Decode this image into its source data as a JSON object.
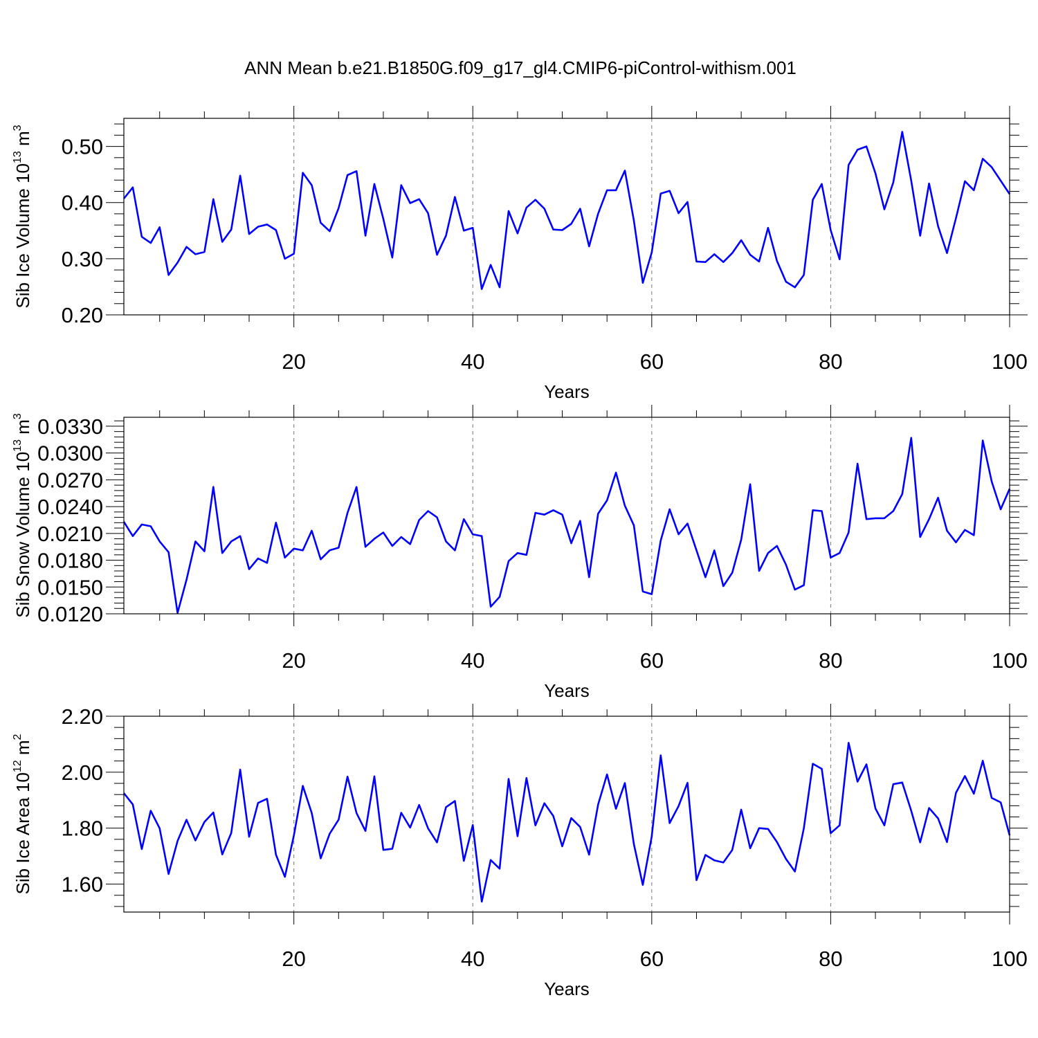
{
  "title": "ANN Mean b.e21.B1850G.f09_g17_gl4.CMIP6-piControl-withism.001",
  "chart_data": [
    {
      "type": "line",
      "ylabel_text": "Sib Ice Volume 10",
      "ylabel_exp": "13",
      "ylabel_unit": " m",
      "ylabel_unit_exp": "3",
      "xlabel": "Years",
      "xlim": [
        1,
        100
      ],
      "ylim": [
        0.2,
        0.55
      ],
      "yticks": [
        0.2,
        0.3,
        0.4,
        0.5
      ],
      "ytick_labels": [
        "0.20",
        "0.30",
        "0.40",
        "0.50"
      ],
      "xticks": [
        20,
        40,
        60,
        80,
        100
      ],
      "xtick_labels": [
        "20",
        "40",
        "60",
        "80",
        "100"
      ],
      "grid": "dashed vertical at major x ticks",
      "line_color": "#0000ff",
      "x_start": 1,
      "values": [
        0.407,
        0.427,
        0.339,
        0.328,
        0.356,
        0.271,
        0.293,
        0.321,
        0.308,
        0.312,
        0.406,
        0.33,
        0.352,
        0.448,
        0.344,
        0.357,
        0.361,
        0.351,
        0.3,
        0.309,
        0.453,
        0.431,
        0.364,
        0.349,
        0.39,
        0.449,
        0.456,
        0.341,
        0.433,
        0.371,
        0.302,
        0.431,
        0.399,
        0.406,
        0.381,
        0.307,
        0.341,
        0.41,
        0.35,
        0.355,
        0.246,
        0.289,
        0.249,
        0.385,
        0.345,
        0.391,
        0.405,
        0.389,
        0.352,
        0.351,
        0.362,
        0.389,
        0.322,
        0.38,
        0.422,
        0.422,
        0.457,
        0.368,
        0.257,
        0.311,
        0.416,
        0.421,
        0.381,
        0.401,
        0.295,
        0.294,
        0.308,
        0.294,
        0.31,
        0.333,
        0.307,
        0.295,
        0.355,
        0.296,
        0.259,
        0.249,
        0.271,
        0.405,
        0.433,
        0.351,
        0.299,
        0.467,
        0.494,
        0.5,
        0.452,
        0.388,
        0.436,
        0.526,
        0.439,
        0.341,
        0.434,
        0.358,
        0.31,
        0.372,
        0.438,
        0.422,
        0.478,
        0.463,
        0.439,
        0.415
      ]
    },
    {
      "type": "line",
      "ylabel_text": "Sib Snow Volume 10",
      "ylabel_exp": "13",
      "ylabel_unit": " m",
      "ylabel_unit_exp": "3",
      "xlabel": "Years",
      "xlim": [
        1,
        100
      ],
      "ylim": [
        0.012,
        0.034
      ],
      "yticks": [
        0.012,
        0.015,
        0.018,
        0.021,
        0.024,
        0.027,
        0.03,
        0.033
      ],
      "ytick_labels": [
        "0.0120",
        "0.0150",
        "0.0180",
        "0.0210",
        "0.0240",
        "0.0270",
        "0.0300",
        "0.0330"
      ],
      "xticks": [
        20,
        40,
        60,
        80,
        100
      ],
      "xtick_labels": [
        "20",
        "40",
        "60",
        "80",
        "100"
      ],
      "grid": "dashed vertical at major x ticks",
      "line_color": "#0000ff",
      "x_start": 1,
      "values": [
        0.0223,
        0.0207,
        0.022,
        0.0218,
        0.0201,
        0.0189,
        0.0121,
        0.0158,
        0.0201,
        0.019,
        0.0262,
        0.0188,
        0.0201,
        0.0207,
        0.017,
        0.0182,
        0.0177,
        0.0222,
        0.0183,
        0.0193,
        0.0191,
        0.0213,
        0.0181,
        0.0191,
        0.0194,
        0.0233,
        0.0262,
        0.0195,
        0.0204,
        0.0211,
        0.0196,
        0.0206,
        0.0198,
        0.0225,
        0.0235,
        0.0228,
        0.0201,
        0.0191,
        0.0226,
        0.0209,
        0.0207,
        0.0128,
        0.0139,
        0.0179,
        0.0188,
        0.0186,
        0.0233,
        0.0231,
        0.0236,
        0.0231,
        0.0199,
        0.0224,
        0.0161,
        0.0232,
        0.0247,
        0.0278,
        0.0241,
        0.0219,
        0.0145,
        0.0142,
        0.0202,
        0.0237,
        0.0209,
        0.0221,
        0.0191,
        0.0161,
        0.0191,
        0.0151,
        0.0166,
        0.0203,
        0.0265,
        0.0168,
        0.0188,
        0.0196,
        0.0175,
        0.0147,
        0.0152,
        0.0236,
        0.0235,
        0.0183,
        0.0188,
        0.0211,
        0.0288,
        0.0226,
        0.0227,
        0.0227,
        0.0235,
        0.0254,
        0.0317,
        0.0206,
        0.0226,
        0.025,
        0.0213,
        0.02,
        0.0214,
        0.0208,
        0.0314,
        0.0268,
        0.0237,
        0.026
      ]
    },
    {
      "type": "line",
      "ylabel_text": "Sib Ice Area 10",
      "ylabel_exp": "12",
      "ylabel_unit": " m",
      "ylabel_unit_exp": "2",
      "xlabel": "Years",
      "xlim": [
        1,
        100
      ],
      "ylim": [
        1.5,
        2.2
      ],
      "yticks": [
        1.6,
        1.8,
        2.0,
        2.2
      ],
      "ytick_labels": [
        "1.60",
        "1.80",
        "2.00",
        "2.20"
      ],
      "xticks": [
        20,
        40,
        60,
        80,
        100
      ],
      "xtick_labels": [
        "20",
        "40",
        "60",
        "80",
        "100"
      ],
      "grid": "dashed vertical at major x ticks",
      "line_color": "#0000ff",
      "x_start": 1,
      "values": [
        1.925,
        1.885,
        1.725,
        1.862,
        1.799,
        1.636,
        1.754,
        1.83,
        1.756,
        1.822,
        1.856,
        1.706,
        1.783,
        2.009,
        1.769,
        1.89,
        1.905,
        1.705,
        1.626,
        1.774,
        1.951,
        1.854,
        1.692,
        1.78,
        1.83,
        1.984,
        1.854,
        1.79,
        1.985,
        1.722,
        1.726,
        1.855,
        1.802,
        1.883,
        1.799,
        1.749,
        1.875,
        1.897,
        1.683,
        1.811,
        1.537,
        1.686,
        1.655,
        1.976,
        1.771,
        1.979,
        1.81,
        1.889,
        1.843,
        1.735,
        1.836,
        1.804,
        1.705,
        1.884,
        1.992,
        1.869,
        1.961,
        1.743,
        1.597,
        1.77,
        2.06,
        1.818,
        1.879,
        1.962,
        1.614,
        1.704,
        1.685,
        1.677,
        1.722,
        1.866,
        1.728,
        1.8,
        1.797,
        1.75,
        1.69,
        1.645,
        1.799,
        2.03,
        2.012,
        1.782,
        1.81,
        2.105,
        1.966,
        2.028,
        1.87,
        1.81,
        1.957,
        1.963,
        1.862,
        1.749,
        1.872,
        1.835,
        1.75,
        1.926,
        1.986,
        1.923,
        2.041,
        1.908,
        1.892,
        1.774
      ]
    }
  ]
}
